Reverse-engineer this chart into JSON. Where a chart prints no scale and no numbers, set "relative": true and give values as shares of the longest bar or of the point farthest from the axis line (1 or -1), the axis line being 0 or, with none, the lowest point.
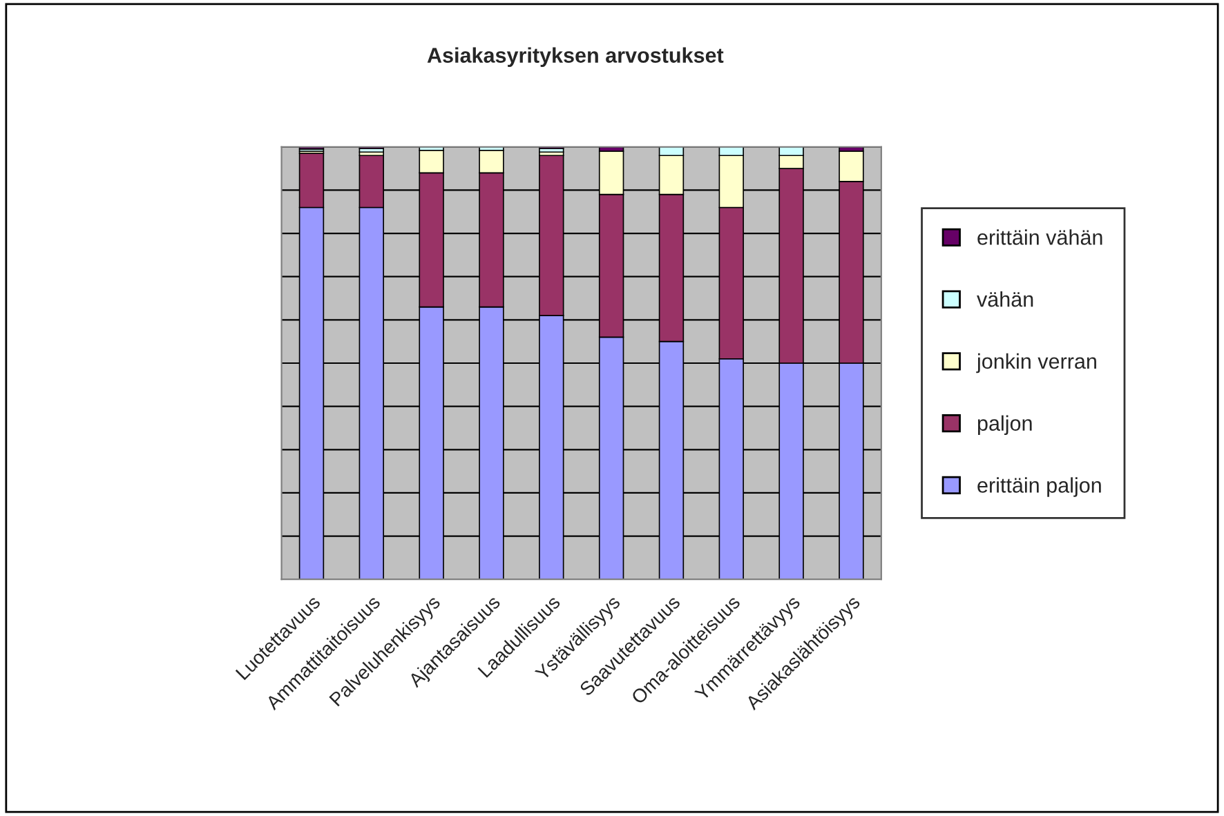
{
  "chart_data": {
    "type": "bar",
    "title": "Asiakasyrityksen arvostukset",
    "relative": true,
    "stacked": true,
    "grid": "y",
    "legend": "right",
    "categories": [
      "Luotettavuus",
      "Ammattitaitoisuus",
      "Palveluhenkisyys",
      "Ajantasaisuus",
      "Laadullisuus",
      "Ystävällisyys",
      "Saavutettavuus",
      "Oma-aloitteisuus",
      "Ymmärrettävyys",
      "Asiakaslähtöisyys"
    ],
    "series": [
      {
        "name": "erittäin paljon",
        "color": "#9999ff",
        "values": [
          0.86,
          0.86,
          0.63,
          0.63,
          0.61,
          0.56,
          0.55,
          0.51,
          0.5,
          0.5
        ]
      },
      {
        "name": "paljon",
        "color": "#993366",
        "values": [
          0.125,
          0.12,
          0.31,
          0.31,
          0.37,
          0.33,
          0.34,
          0.35,
          0.45,
          0.42
        ]
      },
      {
        "name": "jonkin verran",
        "color": "#ffffcc",
        "values": [
          0.005,
          0.008,
          0.052,
          0.052,
          0.008,
          0.1,
          0.09,
          0.12,
          0.03,
          0.07
        ]
      },
      {
        "name": "vähän",
        "color": "#ccffff",
        "values": [
          0.005,
          0.008,
          0.008,
          0.008,
          0.008,
          0,
          0.02,
          0.02,
          0.02,
          0
        ]
      },
      {
        "name": "erittäin vähän",
        "color": "#660066",
        "values": [
          0.005,
          0.004,
          0,
          0,
          0.004,
          0.01,
          0,
          0,
          0,
          0.01
        ]
      }
    ]
  }
}
